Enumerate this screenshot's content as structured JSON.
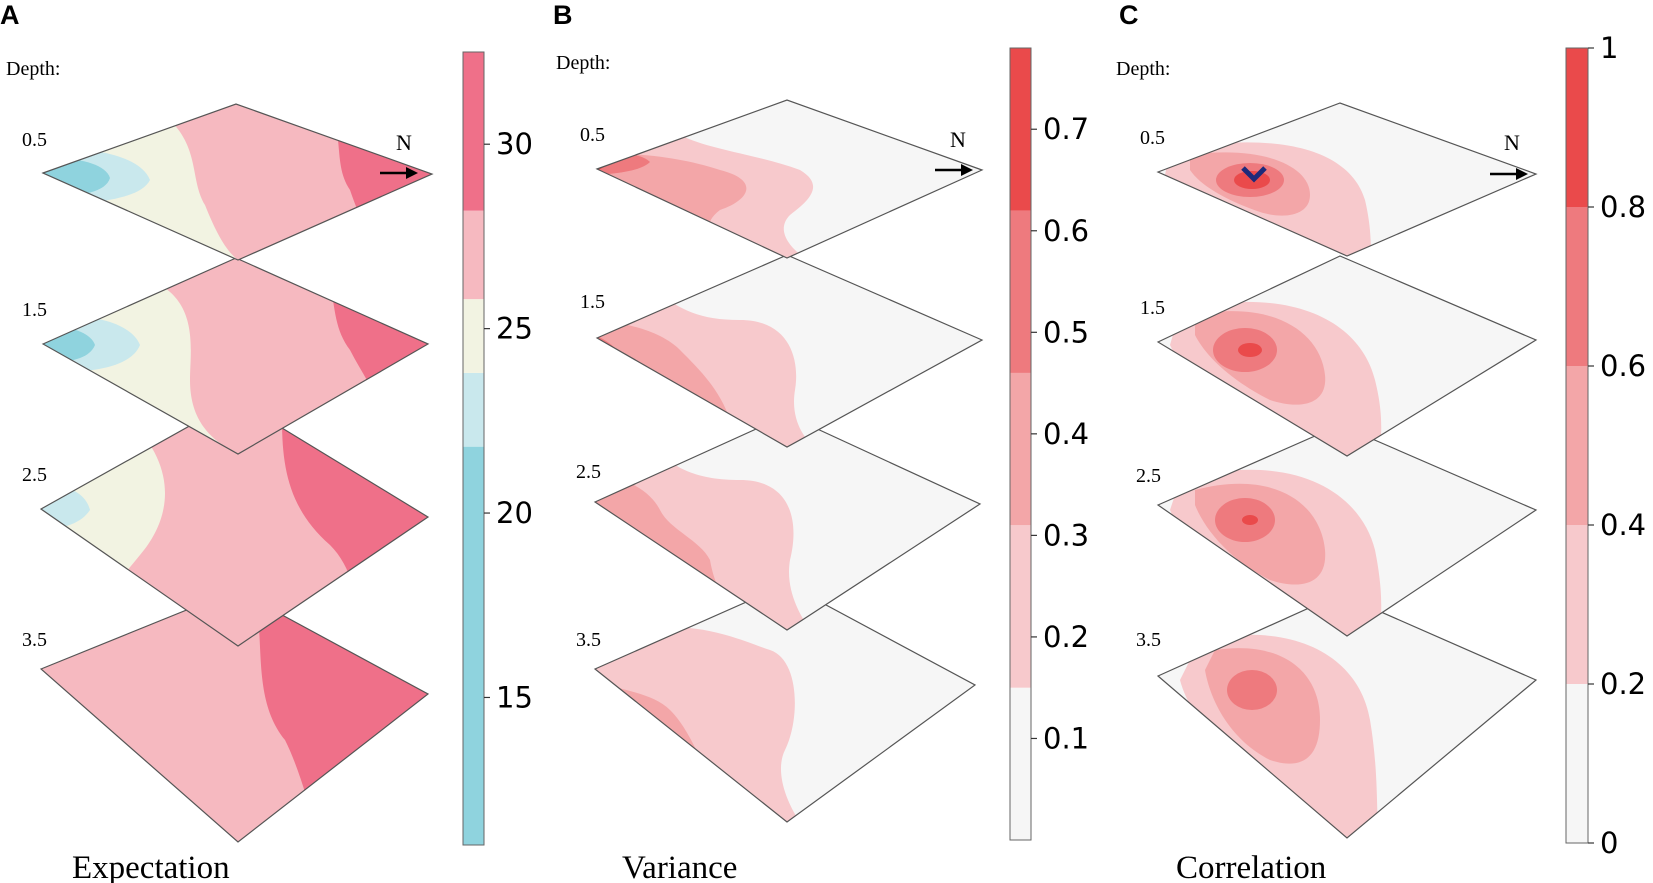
{
  "chart_data": [
    {
      "type": "heatmap",
      "panel": "A",
      "title": "Expectation",
      "depth_title": "Depth:",
      "depths": [
        "0.5",
        "1.5",
        "2.5",
        "3.5"
      ],
      "north_label": "N",
      "colorbar": {
        "range": [
          11,
          32.5
        ],
        "ticks": [
          "15",
          "20",
          "25",
          "30"
        ],
        "tick_values": [
          15,
          20,
          25,
          30
        ],
        "bands": [
          {
            "from": 11,
            "to": 21.8,
            "color": "#8fd3de"
          },
          {
            "from": 21.8,
            "to": 23.8,
            "color": "#c9e8ed"
          },
          {
            "from": 23.8,
            "to": 25.8,
            "color": "#f2f3e2"
          },
          {
            "from": 25.8,
            "to": 28.2,
            "color": "#f6b9c0"
          },
          {
            "from": 28.2,
            "to": 32.5,
            "color": "#ef7089"
          }
        ]
      }
    },
    {
      "type": "heatmap",
      "panel": "B",
      "title": "Variance",
      "depth_title": "Depth:",
      "depths": [
        "0.5",
        "1.5",
        "2.5",
        "3.5"
      ],
      "north_label": "N",
      "colorbar": {
        "range": [
          0,
          0.78
        ],
        "ticks": [
          "0.1",
          "0.2",
          "0.3",
          "0.4",
          "0.5",
          "0.6",
          "0.7"
        ],
        "tick_values": [
          0.1,
          0.2,
          0.3,
          0.4,
          0.5,
          0.6,
          0.7
        ],
        "bands": [
          {
            "from": 0,
            "to": 0.15,
            "color": "#f6f6f6"
          },
          {
            "from": 0.15,
            "to": 0.31,
            "color": "#f7c9cc"
          },
          {
            "from": 0.31,
            "to": 0.46,
            "color": "#f3a6a8"
          },
          {
            "from": 0.46,
            "to": 0.62,
            "color": "#ee7a7e"
          },
          {
            "from": 0.62,
            "to": 0.78,
            "color": "#ea4a4b"
          }
        ]
      }
    },
    {
      "type": "heatmap",
      "panel": "C",
      "title": "Correlation",
      "depth_title": "Depth:",
      "depths": [
        "0.5",
        "1.5",
        "2.5",
        "3.5"
      ],
      "north_label": "N",
      "colorbar": {
        "range": [
          0,
          1
        ],
        "ticks": [
          "0",
          "0.2",
          "0.4",
          "0.6",
          "0.8",
          "1"
        ],
        "tick_values": [
          0,
          0.2,
          0.4,
          0.6,
          0.8,
          1
        ],
        "bands": [
          {
            "from": 0,
            "to": 0.2,
            "color": "#f6f6f6"
          },
          {
            "from": 0.2,
            "to": 0.4,
            "color": "#f7c9cc"
          },
          {
            "from": 0.4,
            "to": 0.6,
            "color": "#f3a6a8"
          },
          {
            "from": 0.6,
            "to": 0.8,
            "color": "#ee7a7e"
          },
          {
            "from": 0.8,
            "to": 1,
            "color": "#ea4a4b"
          }
        ]
      }
    }
  ]
}
